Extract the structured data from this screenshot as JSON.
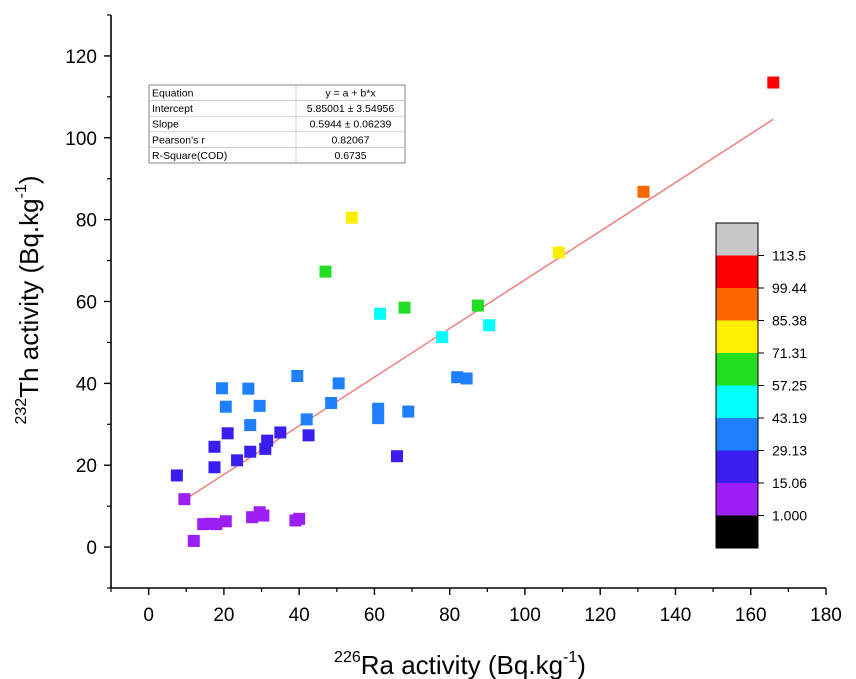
{
  "chart_data": {
    "type": "scatter",
    "xlabel": {
      "sup": "226",
      "text": "Ra activity (Bq.kg",
      "unit_sup": "-1",
      "close": ")"
    },
    "ylabel": {
      "sup": "232",
      "text": "Th activity (Bq.kg",
      "unit_sup": "-1",
      "close": ")"
    },
    "xlim": [
      -10,
      180
    ],
    "ylim": [
      -10,
      130
    ],
    "xticks": [
      0,
      20,
      40,
      60,
      80,
      100,
      120,
      140,
      160,
      180
    ],
    "yticks": [
      0,
      20,
      40,
      60,
      80,
      100,
      120
    ],
    "grid": false,
    "fit_line": {
      "x_start": 10,
      "x_end": 166,
      "intercept": 5.85001,
      "slope": 0.5944,
      "color": "#f08080"
    },
    "stats_table": [
      [
        "Equation",
        "y = a + b*x"
      ],
      [
        "Intercept",
        "5.85001 ± 3.54956"
      ],
      [
        "Slope",
        "0.5944 ± 0.06239"
      ],
      [
        "Pearson's r",
        "0.82067"
      ],
      [
        "R-Square(COD)",
        "0.6735"
      ]
    ],
    "colorbar": {
      "labels": [
        "113.5",
        "99.44",
        "85.38",
        "71.31",
        "57.25",
        "43.19",
        "29.13",
        "15.06",
        "1.000"
      ],
      "colors": [
        "#c8c8c8",
        "#ff0000",
        "#ff6600",
        "#ffee00",
        "#22dd22",
        "#00ffff",
        "#1e7fff",
        "#3a1ef0",
        "#9b1ef5",
        "#000000"
      ]
    },
    "points": [
      {
        "x": 166,
        "y": 113.5,
        "c": "#ff0000"
      },
      {
        "x": 131.5,
        "y": 86.8,
        "c": "#ff6600"
      },
      {
        "x": 54,
        "y": 80.5,
        "c": "#ffee00"
      },
      {
        "x": 109,
        "y": 72,
        "c": "#ffee00"
      },
      {
        "x": 47,
        "y": 67.3,
        "c": "#22dd22"
      },
      {
        "x": 68,
        "y": 58.5,
        "c": "#22dd22"
      },
      {
        "x": 87.5,
        "y": 59,
        "c": "#22dd22"
      },
      {
        "x": 61.5,
        "y": 57,
        "c": "#00ffff"
      },
      {
        "x": 90.5,
        "y": 54.2,
        "c": "#00ffff"
      },
      {
        "x": 78,
        "y": 51.3,
        "c": "#00ffff"
      },
      {
        "x": 82,
        "y": 41.5,
        "c": "#1e7fff"
      },
      {
        "x": 84.5,
        "y": 41.2,
        "c": "#1e7fff"
      },
      {
        "x": 39.5,
        "y": 41.8,
        "c": "#1e7fff"
      },
      {
        "x": 50.5,
        "y": 40,
        "c": "#1e7fff"
      },
      {
        "x": 19.5,
        "y": 38.8,
        "c": "#1e7fff"
      },
      {
        "x": 26.5,
        "y": 38.7,
        "c": "#1e7fff"
      },
      {
        "x": 20.5,
        "y": 34.3,
        "c": "#1e7fff"
      },
      {
        "x": 29.5,
        "y": 34.5,
        "c": "#1e7fff"
      },
      {
        "x": 48.5,
        "y": 35.2,
        "c": "#1e7fff"
      },
      {
        "x": 61,
        "y": 33.8,
        "c": "#1e7fff"
      },
      {
        "x": 69,
        "y": 33.1,
        "c": "#1e7fff"
      },
      {
        "x": 61,
        "y": 31.5,
        "c": "#1e7fff"
      },
      {
        "x": 42,
        "y": 31.2,
        "c": "#1e7fff"
      },
      {
        "x": 27,
        "y": 29.8,
        "c": "#1e7fff"
      },
      {
        "x": 21,
        "y": 27.8,
        "c": "#3a1ef0"
      },
      {
        "x": 35,
        "y": 28,
        "c": "#3a1ef0"
      },
      {
        "x": 42.5,
        "y": 27.3,
        "c": "#3a1ef0"
      },
      {
        "x": 31.5,
        "y": 26,
        "c": "#3a1ef0"
      },
      {
        "x": 17.5,
        "y": 24.5,
        "c": "#3a1ef0"
      },
      {
        "x": 31,
        "y": 24,
        "c": "#3a1ef0"
      },
      {
        "x": 27,
        "y": 23.3,
        "c": "#3a1ef0"
      },
      {
        "x": 66,
        "y": 22.2,
        "c": "#3a1ef0"
      },
      {
        "x": 23.5,
        "y": 21.2,
        "c": "#3a1ef0"
      },
      {
        "x": 17.5,
        "y": 19.5,
        "c": "#3a1ef0"
      },
      {
        "x": 7.5,
        "y": 17.5,
        "c": "#3a1ef0"
      },
      {
        "x": 9.5,
        "y": 11.7,
        "c": "#9b1ef5"
      },
      {
        "x": 29.5,
        "y": 8.5,
        "c": "#9b1ef5"
      },
      {
        "x": 27.5,
        "y": 7.3,
        "c": "#9b1ef5"
      },
      {
        "x": 30.5,
        "y": 7.7,
        "c": "#9b1ef5"
      },
      {
        "x": 39,
        "y": 6.5,
        "c": "#9b1ef5"
      },
      {
        "x": 40,
        "y": 6.9,
        "c": "#9b1ef5"
      },
      {
        "x": 20.5,
        "y": 6.3,
        "c": "#9b1ef5"
      },
      {
        "x": 14.5,
        "y": 5.6,
        "c": "#9b1ef5"
      },
      {
        "x": 16.5,
        "y": 5.7,
        "c": "#9b1ef5"
      },
      {
        "x": 18,
        "y": 5.6,
        "c": "#9b1ef5"
      },
      {
        "x": 12,
        "y": 1.5,
        "c": "#9b1ef5"
      }
    ]
  }
}
